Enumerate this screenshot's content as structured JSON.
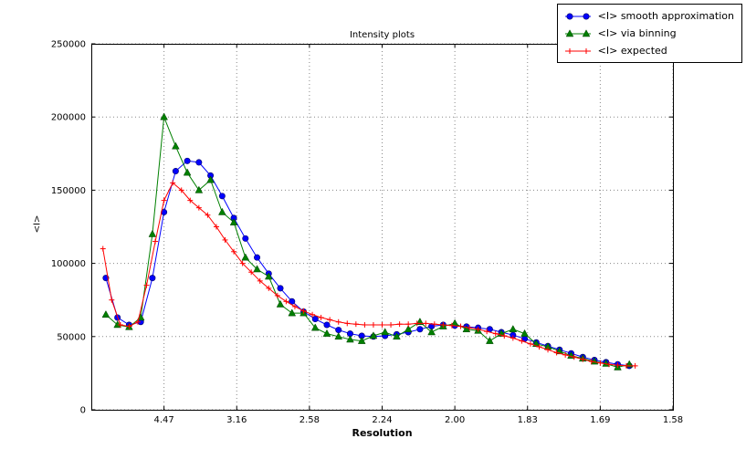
{
  "figure": {
    "title": "Intensity plots",
    "xlabel": "Resolution",
    "ylabel": "<I>"
  },
  "chart_data": {
    "type": "line",
    "title": "Intensity plots",
    "xlabel": "Resolution",
    "ylabel": "<I>",
    "grid": "dotted",
    "legend_position": "upper-right outside plot top",
    "frame_color": "#000000",
    "grid_color": "#888888",
    "x_axis": {
      "scale_note": "linear in 1/d^2, tick labels show d",
      "range": [
        0,
        0.4
      ],
      "ticks": [
        {
          "pos": 0.05,
          "label": "4.47"
        },
        {
          "pos": 0.1,
          "label": "3.16"
        },
        {
          "pos": 0.15,
          "label": "2.58"
        },
        {
          "pos": 0.2,
          "label": "2.24"
        },
        {
          "pos": 0.25,
          "label": "2.00"
        },
        {
          "pos": 0.3,
          "label": "1.83"
        },
        {
          "pos": 0.35,
          "label": "1.69"
        },
        {
          "pos": 0.4,
          "label": "1.58"
        }
      ]
    },
    "y_axis": {
      "range": [
        0,
        250000
      ],
      "ticks": [
        {
          "pos": 0,
          "label": "0"
        },
        {
          "pos": 50000,
          "label": "50000"
        },
        {
          "pos": 100000,
          "label": "100000"
        },
        {
          "pos": 150000,
          "label": "150000"
        },
        {
          "pos": 200000,
          "label": "200000"
        },
        {
          "pos": 250000,
          "label": "250000"
        }
      ]
    },
    "series": [
      {
        "name": "<I> smooth approximation",
        "color": "#0000ff",
        "marker": "circle",
        "x": [
          0.01,
          0.018,
          0.026,
          0.034,
          0.042,
          0.05,
          0.058,
          0.066,
          0.074,
          0.082,
          0.09,
          0.098,
          0.106,
          0.114,
          0.122,
          0.13,
          0.138,
          0.146,
          0.154,
          0.162,
          0.17,
          0.178,
          0.186,
          0.194,
          0.202,
          0.21,
          0.218,
          0.226,
          0.234,
          0.242,
          0.25,
          0.258,
          0.266,
          0.274,
          0.282,
          0.29,
          0.298,
          0.306,
          0.314,
          0.322,
          0.33,
          0.338,
          0.346,
          0.354,
          0.362,
          0.37
        ],
        "y": [
          90000,
          63000,
          58000,
          60000,
          90000,
          135000,
          163000,
          170000,
          169000,
          160000,
          146000,
          131000,
          117000,
          104000,
          93000,
          83000,
          74000,
          67000,
          62000,
          58000,
          54500,
          52000,
          50500,
          50000,
          50500,
          51500,
          53000,
          55000,
          57000,
          58000,
          57500,
          56800,
          56000,
          55000,
          53000,
          51000,
          48500,
          46000,
          43500,
          41000,
          38500,
          36000,
          34000,
          32500,
          31000,
          30000
        ]
      },
      {
        "name": "<I> via binning",
        "color": "#008000",
        "marker": "triangle",
        "x": [
          0.01,
          0.018,
          0.026,
          0.034,
          0.042,
          0.05,
          0.058,
          0.066,
          0.074,
          0.082,
          0.09,
          0.098,
          0.106,
          0.114,
          0.122,
          0.13,
          0.138,
          0.146,
          0.154,
          0.162,
          0.17,
          0.178,
          0.186,
          0.194,
          0.202,
          0.21,
          0.218,
          0.226,
          0.234,
          0.242,
          0.25,
          0.258,
          0.266,
          0.274,
          0.282,
          0.29,
          0.298,
          0.306,
          0.314,
          0.322,
          0.33,
          0.338,
          0.346,
          0.354,
          0.362,
          0.37
        ],
        "y": [
          65000,
          58000,
          56500,
          63000,
          120000,
          200000,
          180000,
          162000,
          150000,
          157000,
          135000,
          128000,
          104000,
          96000,
          91000,
          72000,
          66000,
          66000,
          56000,
          52000,
          50000,
          48000,
          47000,
          50500,
          53000,
          50000,
          55000,
          60000,
          53000,
          57000,
          59000,
          55000,
          54000,
          47000,
          52000,
          55000,
          52000,
          45000,
          43000,
          40000,
          37000,
          35000,
          33000,
          31500,
          29000,
          31000
        ]
      },
      {
        "name": "<I> expected",
        "color": "#ff0000",
        "marker": "plus",
        "x": [
          0.008,
          0.014,
          0.02,
          0.026,
          0.032,
          0.038,
          0.044,
          0.05,
          0.056,
          0.062,
          0.068,
          0.074,
          0.08,
          0.086,
          0.092,
          0.098,
          0.104,
          0.11,
          0.116,
          0.122,
          0.128,
          0.134,
          0.14,
          0.146,
          0.152,
          0.158,
          0.164,
          0.17,
          0.176,
          0.182,
          0.188,
          0.194,
          0.2,
          0.206,
          0.212,
          0.218,
          0.224,
          0.23,
          0.236,
          0.242,
          0.248,
          0.254,
          0.26,
          0.266,
          0.272,
          0.278,
          0.284,
          0.29,
          0.296,
          0.302,
          0.308,
          0.314,
          0.32,
          0.326,
          0.332,
          0.338,
          0.344,
          0.35,
          0.356,
          0.362,
          0.368,
          0.374
        ],
        "y": [
          110000,
          75000,
          58000,
          57000,
          60000,
          85000,
          115000,
          143000,
          155000,
          150000,
          143000,
          138000,
          133000,
          125000,
          116000,
          108000,
          100000,
          94000,
          88000,
          83000,
          78000,
          74000,
          70500,
          67500,
          65000,
          63000,
          61500,
          60000,
          59000,
          58500,
          58000,
          58000,
          58000,
          58000,
          58500,
          58500,
          59000,
          59000,
          58500,
          58000,
          57500,
          57000,
          56000,
          55000,
          53500,
          52000,
          50500,
          49000,
          47000,
          45000,
          43000,
          41000,
          39000,
          37500,
          36000,
          34500,
          33000,
          32000,
          31000,
          30500,
          30000,
          30000
        ]
      }
    ]
  }
}
